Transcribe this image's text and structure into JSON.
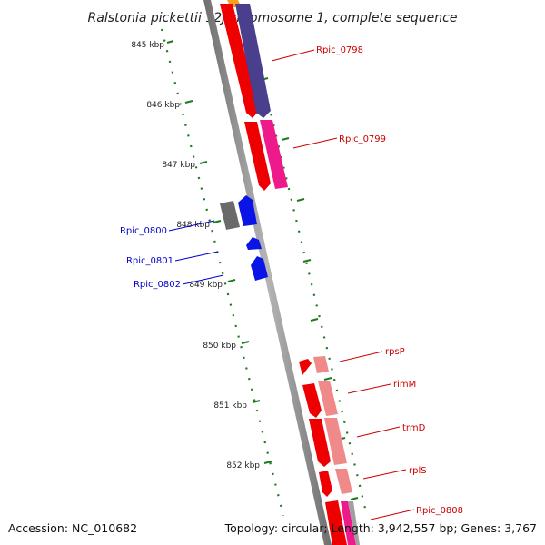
{
  "title": "Ralstonia pickettii 12J chromosome 1, complete sequence",
  "footer": {
    "accession": "Accession: NC_010682",
    "topology": "Topology: circular; Length: 3,942,557 bp; Genes: 3,767"
  },
  "colors": {
    "backbone": "#8c8c8c",
    "tick": "#1f7a1f",
    "forward_label": "#cc0000",
    "reverse_label": "#0000cc",
    "gene_red": "#ee0000",
    "gene_navy": "#4a3f8c",
    "gene_magenta": "#ee1a8c",
    "gene_salmon": "#f08a8a",
    "gene_blue": "#0a14e6",
    "gene_gray": "#6a6a6a",
    "gene_orange": "#f5a020"
  },
  "ticks": [
    "845 kbp",
    "846 kbp",
    "847 kbp",
    "848 kbp",
    "849 kbp",
    "850 kbp",
    "851 kbp",
    "852 kbp"
  ],
  "forward_labels": [
    "Rpic_0798",
    "Rpic_0799",
    "rpsP",
    "rimM",
    "trmD",
    "rplS",
    "Rpic_0808"
  ],
  "reverse_labels": [
    "Rpic_0800",
    "Rpic_0801",
    "Rpic_0802"
  ]
}
